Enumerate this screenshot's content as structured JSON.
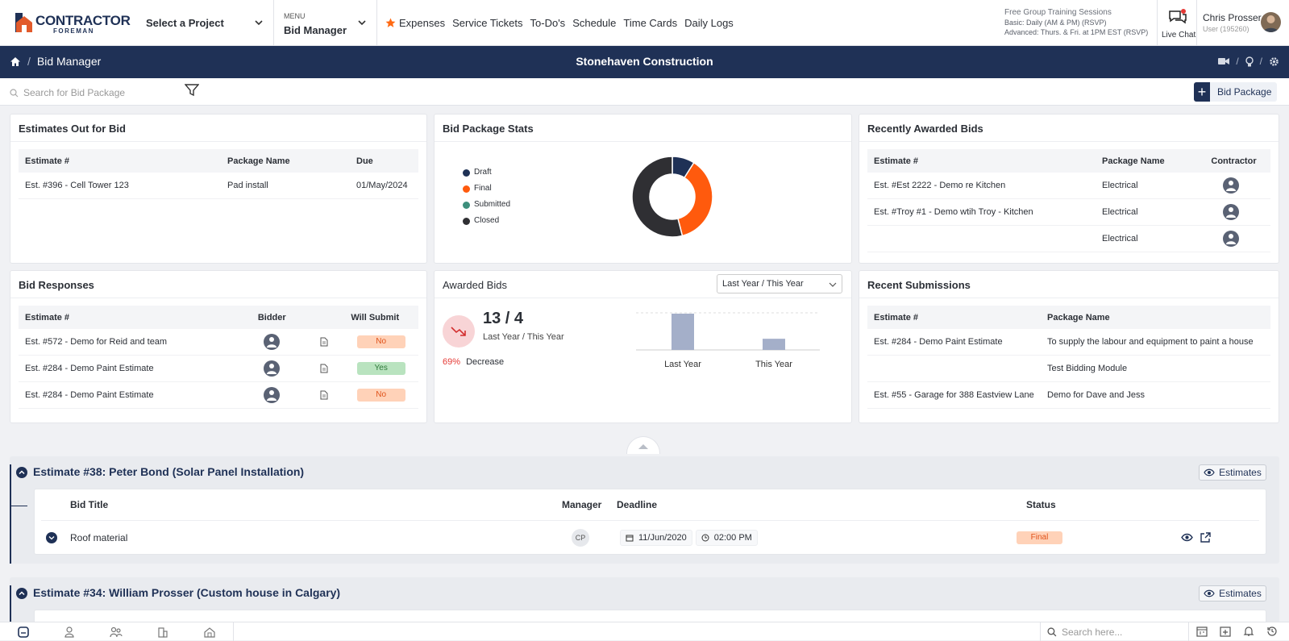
{
  "brand": {
    "line1": "CONTRACTOR",
    "line2": "FOREMAN"
  },
  "project_selector": {
    "label": "Select a Project"
  },
  "menu": {
    "caption": "MENU",
    "value": "Bid Manager"
  },
  "quick_links": [
    "Expenses",
    "Service Tickets",
    "To-Do's",
    "Schedule",
    "Time Cards",
    "Daily Logs"
  ],
  "training": {
    "title": "Free Group Training Sessions",
    "line1": "Basic: Daily (AM & PM) (RSVP)",
    "line2": "Advanced: Thurs. & Fri. at 1PM EST (RSVP)"
  },
  "live_chat": "Live Chat",
  "user": {
    "name": "Chris Prosser",
    "id": "User (195260)"
  },
  "breadcrumb": {
    "sep": "/",
    "current": "Bid Manager"
  },
  "company": "Stonehaven Construction",
  "toolbar": {
    "search_placeholder": "Search for Bid Package",
    "add_label": "Bid Package"
  },
  "estimates_out": {
    "title": "Estimates Out for Bid",
    "headers": [
      "Estimate #",
      "Package Name",
      "Due"
    ],
    "rows": [
      [
        "Est. #396 - Cell Tower 123",
        "Pad install",
        "01/May/2024"
      ]
    ]
  },
  "bid_package_stats": {
    "title": "Bid Package Stats",
    "legend": [
      {
        "label": "Draft",
        "color": "#1f3156"
      },
      {
        "label": "Final",
        "color": "#ff5a0d"
      },
      {
        "label": "Submitted",
        "color": "#3d8f7c"
      },
      {
        "label": "Closed",
        "color": "#2f2f33"
      }
    ]
  },
  "recently_awarded": {
    "title": "Recently Awarded Bids",
    "headers": [
      "Estimate #",
      "Package Name",
      "Contractor"
    ],
    "rows": [
      [
        "Est. #Est 2222 - Demo re Kitchen",
        "Electrical"
      ],
      [
        "Est. #Troy #1 - Demo wtih Troy - Kitchen",
        "Electrical"
      ],
      [
        "",
        "Electrical"
      ]
    ]
  },
  "bid_responses": {
    "title": "Bid Responses",
    "headers": [
      "Estimate #",
      "Bidder",
      "Will Submit"
    ],
    "rows": [
      {
        "est": "Est. #572 - Demo for Reid and team",
        "submit": "No"
      },
      {
        "est": "Est. #284 - Demo Paint Estimate",
        "submit": "Yes"
      },
      {
        "est": "Est. #284 - Demo Paint Estimate",
        "submit": "No"
      }
    ]
  },
  "awarded_bids": {
    "title": "Awarded Bids",
    "period": "Last Year / This Year",
    "ratio": "13 / 4",
    "ratio_label": "Last Year / This Year",
    "change_pct": "69%",
    "change_label": "Decrease"
  },
  "recent_submissions": {
    "title": "Recent Submissions",
    "headers": [
      "Estimate #",
      "Package Name"
    ],
    "rows": [
      [
        "Est. #284 - Demo Paint Estimate",
        "To supply the labour and equipment to paint a house"
      ],
      [
        "",
        "Test Bidding Module"
      ],
      [
        "Est. #55 - Garage for 388 Eastview Lane",
        "Demo for Dave and Jess"
      ]
    ]
  },
  "chart_data": [
    {
      "type": "pie",
      "labels": [
        "Draft",
        "Final",
        "Submitted",
        "Closed"
      ],
      "values": [
        9,
        37,
        0,
        54
      ]
    },
    {
      "type": "bar",
      "categories": [
        "Last Year",
        "This Year"
      ],
      "values": [
        13,
        4
      ]
    }
  ],
  "sections": [
    {
      "title": "Estimate #38: Peter Bond (Solar Panel Installation)",
      "button": "Estimates",
      "headers": [
        "Bid Title",
        "Manager",
        "Deadline",
        "Status"
      ],
      "rows": [
        {
          "title": "Roof material",
          "manager": "CP",
          "date": "11/Jun/2020",
          "time": "02:00 PM",
          "status": "Final"
        }
      ]
    },
    {
      "title": "Estimate #34: William Prosser (Custom house in Calgary)",
      "button": "Estimates"
    }
  ],
  "bottom": {
    "search_placeholder": "Search here..."
  }
}
